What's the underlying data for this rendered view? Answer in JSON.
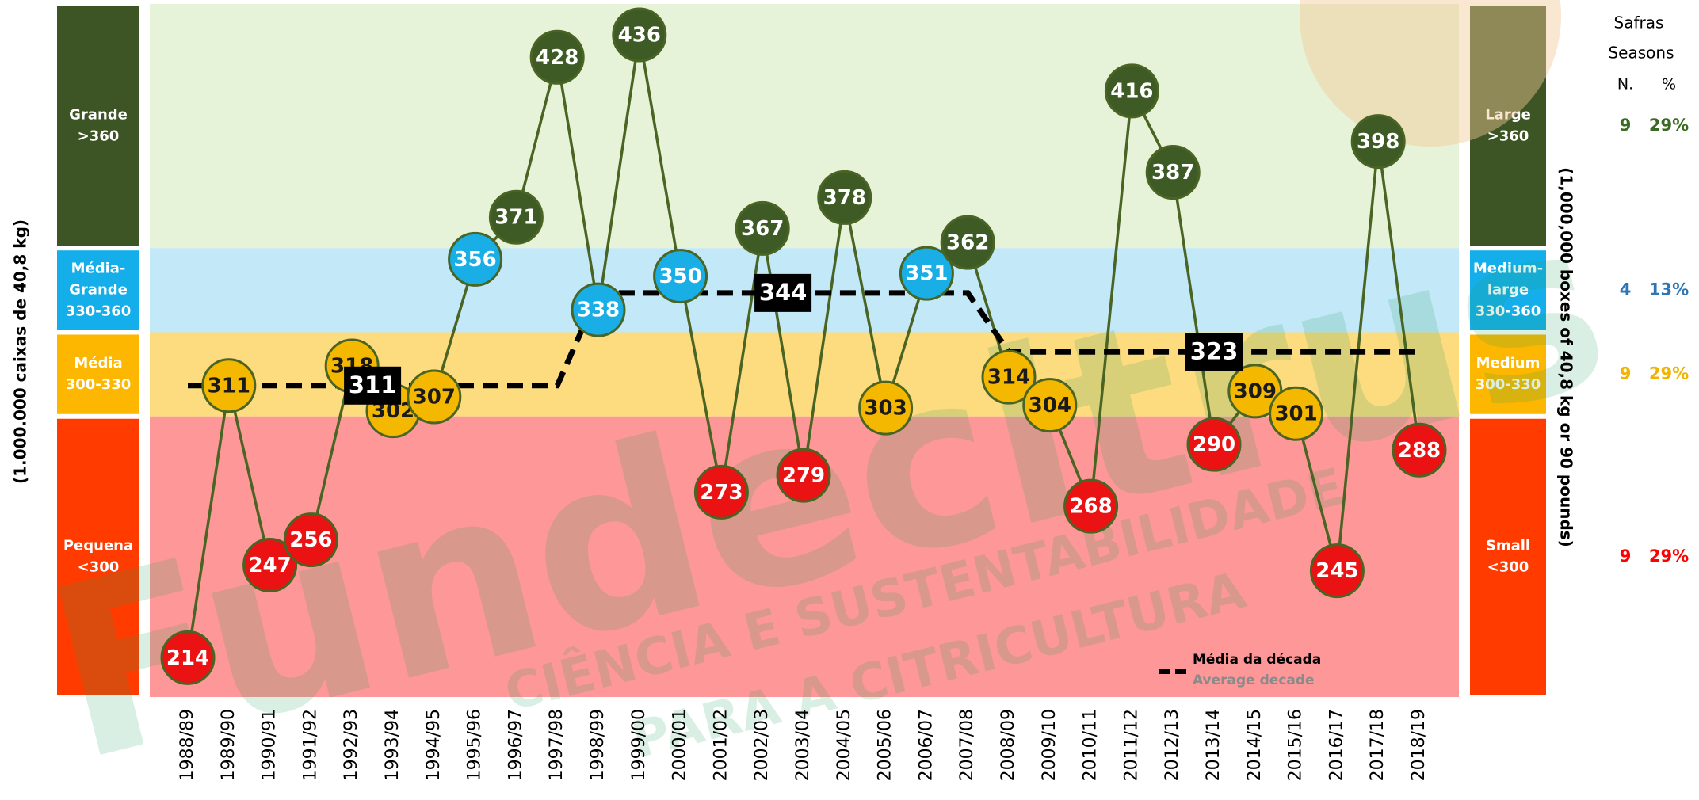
{
  "chart_data": {
    "type": "line",
    "y_axis_label": "(1.000.000 caixas de 40,8 kg)",
    "y2_axis_label": "(1,000,000 boxes of 40,8 kg or 90 pounds)",
    "categories": [
      "1988/89",
      "1989/90",
      "1990/91",
      "1991/92",
      "1992/93",
      "1993/94",
      "1994/95",
      "1995/96",
      "1996/97",
      "1997/98",
      "1998/99",
      "1999/00",
      "2000/01",
      "2001/02",
      "2002/03",
      "2003/04",
      "2004/05",
      "2005/06",
      "2006/07",
      "2007/08",
      "2008/09",
      "2009/10",
      "2010/11",
      "2011/12",
      "2012/13",
      "2013/14",
      "2014/15",
      "2015/16",
      "2016/17",
      "2017/18",
      "2018/19"
    ],
    "series": [
      {
        "name": "Safras",
        "color": "#4a6424",
        "values": [
          214,
          311,
          247,
          256,
          318,
          302,
          307,
          356,
          371,
          428,
          338,
          436,
          350,
          273,
          367,
          279,
          378,
          303,
          351,
          362,
          314,
          304,
          268,
          416,
          387,
          290,
          309,
          301,
          245,
          398,
          288
        ]
      },
      {
        "name": "Média da década",
        "name_en": "Average decade",
        "color": "#000000",
        "values": [
          311,
          311,
          311,
          311,
          311,
          311,
          311,
          311,
          311,
          311,
          344,
          344,
          344,
          344,
          344,
          344,
          344,
          344,
          344,
          344,
          323,
          323,
          323,
          323,
          323,
          323,
          323,
          323,
          323,
          323,
          323
        ]
      }
    ],
    "ylim": [
      200,
      447
    ],
    "bands": [
      {
        "from": 360,
        "to": 447,
        "label_pt": [
          "Grande",
          ">360"
        ],
        "label_en": [
          "Large",
          ">360"
        ],
        "fill": "#e6f3d8",
        "side_color": "#3d5524",
        "point_color": "#3e5b26",
        "point_text_color": "#ffffff",
        "count": 9,
        "share": "29%",
        "count_color": "#3b6b22"
      },
      {
        "from": 330,
        "to": 360,
        "label_pt": [
          "Média-",
          "Grande",
          "330-360"
        ],
        "label_en": [
          "Medium-",
          "large",
          "330-360"
        ],
        "fill": "#c3e8f7",
        "side_color": "#14aeea",
        "point_color": "#1aaee6",
        "point_text_color": "#ffffff",
        "count": 4,
        "share": "13%",
        "count_color": "#2e75b6"
      },
      {
        "from": 300,
        "to": 330,
        "label_pt": [
          "Média",
          "300-330"
        ],
        "label_en": [
          "Medium",
          "300-330"
        ],
        "fill": "#fddb7f",
        "side_color": "#fdb700",
        "point_color": "#f5b800",
        "point_text_color": "#1a1a1a",
        "count": 9,
        "share": "29%",
        "count_color": "#f0b400"
      },
      {
        "from": 200,
        "to": 300,
        "label_pt": [
          "Pequena",
          "<300"
        ],
        "label_en": [
          "Small",
          "<300"
        ],
        "fill": "#fe9797",
        "side_color": "#ff3b00",
        "point_color": "#ea1212",
        "point_text_color": "#ffffff",
        "count": 9,
        "share": "29%",
        "count_color": "#ff0000"
      }
    ],
    "table_header": {
      "title_en": "Seasons",
      "count": "N.",
      "share": "%"
    },
    "watermark": {
      "brand": "Fundecitrus",
      "tagline_1": "CIÊNCIA E SUSTENTABILIDADE",
      "tagline_2": "PARA A CITRICULTURA"
    }
  }
}
